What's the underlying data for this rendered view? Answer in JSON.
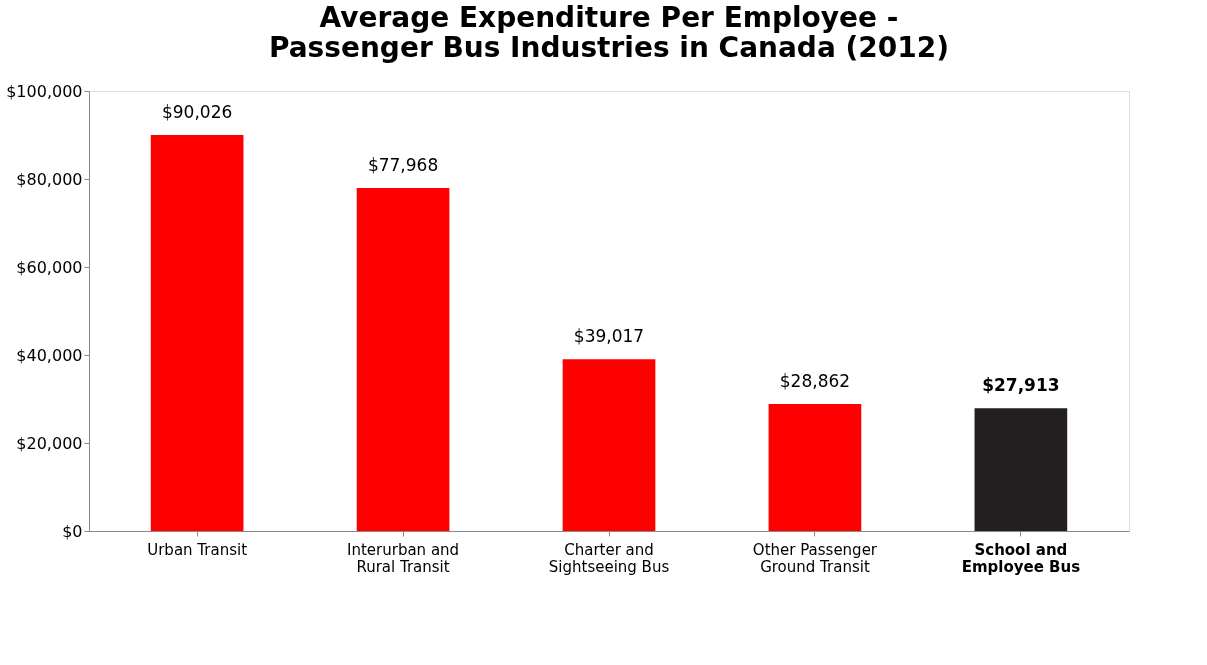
{
  "chart_data": {
    "type": "bar",
    "title": [
      "Average Expenditure Per Employee -",
      "Passenger Bus Industries in Canada (2012)"
    ],
    "categories": [
      "Urban Transit",
      "Interurban and Rural Transit",
      "Charter and Sightseeing Bus",
      "Other Passenger Ground Transit",
      "School and Employee Bus"
    ],
    "values": [
      90026,
      77968,
      39017,
      28862,
      27913
    ],
    "value_labels": [
      "$90,026",
      "$77,968",
      "$39,017",
      "$28,862",
      "$27,913"
    ],
    "colors": [
      "#ff0000",
      "#ff0000",
      "#ff0000",
      "#ff0000",
      "#231f20"
    ],
    "ylim": [
      0,
      100000
    ],
    "yticks": [
      {
        "value": 0,
        "label": "$0"
      },
      {
        "value": 20000,
        "label": "$20,000"
      },
      {
        "value": 40000,
        "label": "$40,000"
      },
      {
        "value": 60000,
        "label": "$60,000"
      },
      {
        "value": 80000,
        "label": "$80,000"
      },
      {
        "value": 100000,
        "label": "$100,000"
      }
    ],
    "grid": false
  }
}
